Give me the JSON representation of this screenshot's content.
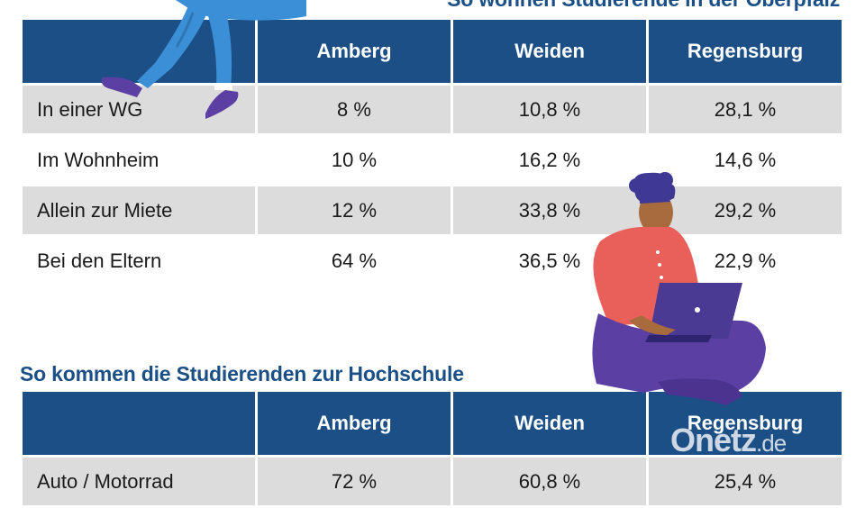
{
  "table1": {
    "title": "So wohnen Studierende in der Oberpfalz",
    "columns": [
      "",
      "Amberg",
      "Weiden",
      "Regensburg"
    ],
    "rows": [
      {
        "label": "In einer WG",
        "values": [
          "8 %",
          "10,8 %",
          "28,1 %"
        ]
      },
      {
        "label": "Im Wohnheim",
        "values": [
          "10 %",
          "16,2 %",
          "14,6 %"
        ]
      },
      {
        "label": "Allein zur Miete",
        "values": [
          "12 %",
          "33,8 %",
          "29,2 %"
        ]
      },
      {
        "label": "Bei den Eltern",
        "values": [
          "64 %",
          "36,5 %",
          "22,9 %"
        ]
      }
    ]
  },
  "table2": {
    "title": "So kommen die Studierenden zur Hochschule",
    "columns": [
      "",
      "Amberg",
      "Weiden",
      "Regensburg"
    ],
    "rows": [
      {
        "label": "Auto / Motorrad",
        "values": [
          "72 %",
          "60,8 %",
          "25,4 %"
        ]
      }
    ]
  },
  "watermark": {
    "brand": "Onetz",
    "tld": ".de"
  },
  "colors": {
    "header_blue": "#1b4f86",
    "row_gray": "#dcdcdc",
    "shirt_red": "#e9605a",
    "pants_purple": "#5c3fa3",
    "jeans_blue": "#3b8fd6"
  },
  "chart_data": [
    {
      "type": "table",
      "title": "So wohnen Studierende in der Oberpfalz",
      "columns": [
        "Amberg",
        "Weiden",
        "Regensburg"
      ],
      "unit": "%",
      "rows": [
        {
          "label": "In einer WG",
          "values": [
            8,
            10.8,
            28.1
          ]
        },
        {
          "label": "Im Wohnheim",
          "values": [
            10,
            16.2,
            14.6
          ]
        },
        {
          "label": "Allein zur Miete",
          "values": [
            12,
            33.8,
            29.2
          ]
        },
        {
          "label": "Bei den Eltern",
          "values": [
            64,
            36.5,
            22.9
          ]
        }
      ]
    },
    {
      "type": "table",
      "title": "So kommen die Studierenden zur Hochschule",
      "columns": [
        "Amberg",
        "Weiden",
        "Regensburg"
      ],
      "unit": "%",
      "rows": [
        {
          "label": "Auto / Motorrad",
          "values": [
            72,
            60.8,
            25.4
          ]
        }
      ]
    }
  ]
}
